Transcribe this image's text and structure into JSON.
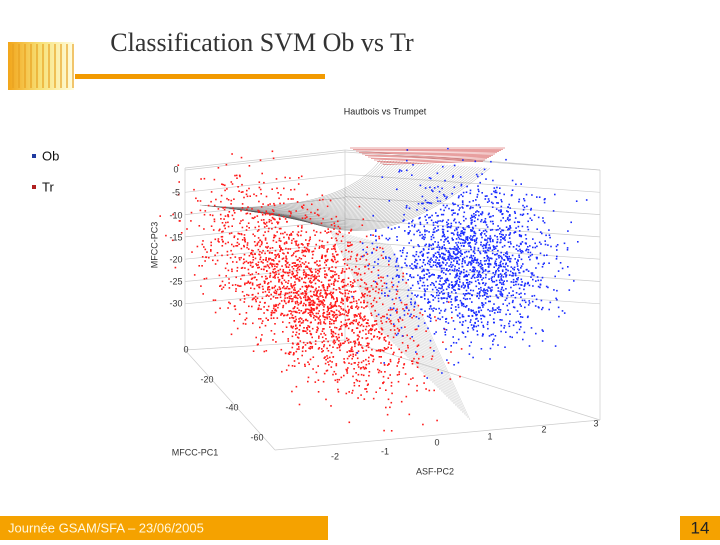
{
  "header": {
    "title": "Classification SVM Ob vs Tr"
  },
  "bullets": [
    "Ob",
    "Tr"
  ],
  "figure": {
    "title": "Hautbois vs Trumpet",
    "z_axis": {
      "label": "MFCC-PC3",
      "ticks": [
        0,
        -5,
        -10,
        -15,
        -20,
        -25,
        -30
      ]
    },
    "x_axis": {
      "label": "MFCC-PC1",
      "ticks": [
        0,
        -20,
        -40,
        -60
      ]
    },
    "y_axis": {
      "label": "ASF-PC2",
      "ticks": [
        -2,
        -1,
        0,
        1,
        2,
        3
      ]
    }
  },
  "footer": {
    "text": "Journée GSAM/SFA – 23/06/2005",
    "page": "14"
  }
}
